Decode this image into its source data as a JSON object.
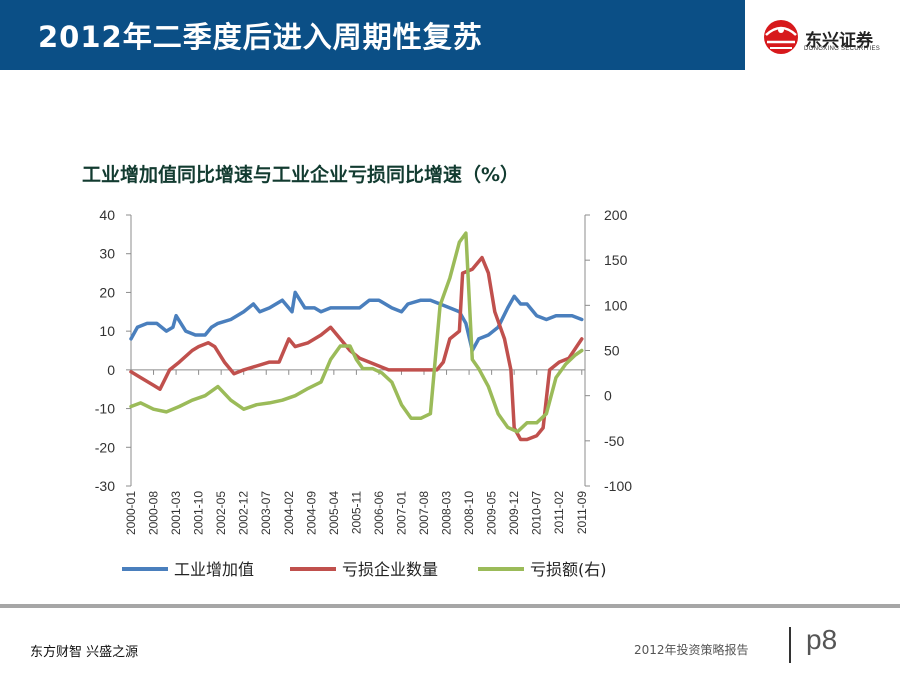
{
  "header": {
    "title": "2012年二季度后进入周期性复苏"
  },
  "logo": {
    "name": "东兴证券",
    "subtitle": "DONGXING SECURITIES"
  },
  "footer": {
    "left_text": "东方财智 兴盛之源",
    "right_text": "2012年投资策略报告",
    "page": "p8"
  },
  "colors": {
    "header_bg": "#0b4f86",
    "blue": "#4a7fbd",
    "red": "#c0504d",
    "green": "#9bbb59",
    "logo_red": "#d7191c"
  },
  "chart_data": {
    "type": "line",
    "title": "工业增加值同比增速与工业企业亏损同比增速（%）",
    "x_start": "2000-01",
    "x_end": "2011-10",
    "x_tick_labels": [
      "2000-01",
      "2000-08",
      "2001-03",
      "2001-10",
      "2002-05",
      "2002-12",
      "2003-07",
      "2004-02",
      "2004-09",
      "2005-04",
      "2005-11",
      "2006-06",
      "2007-01",
      "2007-08",
      "2008-03",
      "2008-10",
      "2009-05",
      "2009-12",
      "2010-07",
      "2011-02",
      "2011-09"
    ],
    "y_left": {
      "min": -30,
      "max": 40,
      "ticks": [
        -30,
        -20,
        -10,
        0,
        10,
        20,
        30,
        40
      ]
    },
    "y_right": {
      "min": -100,
      "max": 200,
      "ticks": [
        -100,
        -50,
        0,
        50,
        100,
        150,
        200
      ]
    },
    "grid": false,
    "legend_position": "bottom",
    "series": [
      {
        "name": "工业增加值",
        "axis": "left",
        "color": "#4a7fbd",
        "points": [
          [
            "2000-01",
            8
          ],
          [
            "2000-03",
            11
          ],
          [
            "2000-06",
            12
          ],
          [
            "2000-09",
            12
          ],
          [
            "2000-12",
            10
          ],
          [
            "2001-02",
            11
          ],
          [
            "2001-03",
            14
          ],
          [
            "2001-06",
            10
          ],
          [
            "2001-09",
            9
          ],
          [
            "2001-12",
            9
          ],
          [
            "2002-02",
            11
          ],
          [
            "2002-04",
            12
          ],
          [
            "2002-08",
            13
          ],
          [
            "2002-12",
            15
          ],
          [
            "2003-03",
            17
          ],
          [
            "2003-05",
            15
          ],
          [
            "2003-08",
            16
          ],
          [
            "2003-12",
            18
          ],
          [
            "2004-03",
            15
          ],
          [
            "2004-04",
            20
          ],
          [
            "2004-07",
            16
          ],
          [
            "2004-10",
            16
          ],
          [
            "2004-12",
            15
          ],
          [
            "2005-03",
            16
          ],
          [
            "2005-06",
            16
          ],
          [
            "2005-10",
            16
          ],
          [
            "2005-12",
            16
          ],
          [
            "2006-03",
            18
          ],
          [
            "2006-06",
            18
          ],
          [
            "2006-10",
            16
          ],
          [
            "2007-01",
            15
          ],
          [
            "2007-03",
            17
          ],
          [
            "2007-07",
            18
          ],
          [
            "2007-10",
            18
          ],
          [
            "2008-01",
            17
          ],
          [
            "2008-04",
            16
          ],
          [
            "2008-07",
            15
          ],
          [
            "2008-09",
            12
          ],
          [
            "2008-11",
            5
          ],
          [
            "2009-01",
            8
          ],
          [
            "2009-04",
            9
          ],
          [
            "2009-07",
            11
          ],
          [
            "2009-10",
            16
          ],
          [
            "2009-12",
            19
          ],
          [
            "2010-02",
            17
          ],
          [
            "2010-04",
            17
          ],
          [
            "2010-07",
            14
          ],
          [
            "2010-10",
            13
          ],
          [
            "2011-01",
            14
          ],
          [
            "2011-04",
            14
          ],
          [
            "2011-06",
            14
          ],
          [
            "2011-09",
            13
          ]
        ]
      },
      {
        "name": "亏损企业数量",
        "axis": "left",
        "color": "#c0504d",
        "points": [
          [
            "2000-01",
            -0.5
          ],
          [
            "2000-04",
            -2
          ],
          [
            "2000-08",
            -4
          ],
          [
            "2000-10",
            -5
          ],
          [
            "2001-01",
            0
          ],
          [
            "2001-04",
            2
          ],
          [
            "2001-08",
            5
          ],
          [
            "2001-10",
            6
          ],
          [
            "2002-01",
            7
          ],
          [
            "2002-03",
            6
          ],
          [
            "2002-06",
            2
          ],
          [
            "2002-09",
            -1
          ],
          [
            "2002-12",
            0
          ],
          [
            "2003-04",
            1
          ],
          [
            "2003-08",
            2
          ],
          [
            "2003-11",
            2
          ],
          [
            "2004-02",
            8
          ],
          [
            "2004-04",
            6
          ],
          [
            "2004-08",
            7
          ],
          [
            "2004-12",
            9
          ],
          [
            "2005-03",
            11
          ],
          [
            "2005-06",
            8
          ],
          [
            "2005-09",
            5
          ],
          [
            "2005-12",
            3
          ],
          [
            "2006-03",
            2
          ],
          [
            "2006-06",
            1
          ],
          [
            "2006-09",
            0
          ],
          [
            "2006-12",
            0
          ],
          [
            "2007-03",
            0
          ],
          [
            "2007-06",
            0
          ],
          [
            "2007-09",
            0
          ],
          [
            "2007-12",
            0
          ],
          [
            "2008-02",
            2
          ],
          [
            "2008-04",
            8
          ],
          [
            "2008-07",
            10
          ],
          [
            "2008-08",
            25
          ],
          [
            "2008-11",
            26
          ],
          [
            "2009-02",
            29
          ],
          [
            "2009-04",
            25
          ],
          [
            "2009-06",
            15
          ],
          [
            "2009-09",
            8
          ],
          [
            "2009-11",
            0
          ],
          [
            "2009-12",
            -15
          ],
          [
            "2010-02",
            -18
          ],
          [
            "2010-04",
            -18
          ],
          [
            "2010-07",
            -17
          ],
          [
            "2010-09",
            -15
          ],
          [
            "2010-11",
            0
          ],
          [
            "2011-02",
            2
          ],
          [
            "2011-05",
            3
          ],
          [
            "2011-09",
            8
          ]
        ]
      },
      {
        "name": "亏损额(右)",
        "axis": "right",
        "color": "#9bbb59",
        "points": [
          [
            "2000-01",
            -12
          ],
          [
            "2000-04",
            -8
          ],
          [
            "2000-08",
            -15
          ],
          [
            "2000-12",
            -18
          ],
          [
            "2001-04",
            -12
          ],
          [
            "2001-08",
            -5
          ],
          [
            "2001-12",
            0
          ],
          [
            "2002-04",
            10
          ],
          [
            "2002-08",
            -5
          ],
          [
            "2002-12",
            -15
          ],
          [
            "2003-04",
            -10
          ],
          [
            "2003-08",
            -8
          ],
          [
            "2003-12",
            -5
          ],
          [
            "2004-04",
            0
          ],
          [
            "2004-08",
            8
          ],
          [
            "2004-12",
            15
          ],
          [
            "2005-03",
            40
          ],
          [
            "2005-06",
            55
          ],
          [
            "2005-09",
            55
          ],
          [
            "2005-11",
            40
          ],
          [
            "2006-01",
            30
          ],
          [
            "2006-04",
            30
          ],
          [
            "2006-07",
            25
          ],
          [
            "2006-10",
            15
          ],
          [
            "2007-01",
            -10
          ],
          [
            "2007-04",
            -25
          ],
          [
            "2007-07",
            -25
          ],
          [
            "2007-10",
            -20
          ],
          [
            "2008-01",
            100
          ],
          [
            "2008-04",
            130
          ],
          [
            "2008-07",
            170
          ],
          [
            "2008-09",
            180
          ],
          [
            "2008-11",
            40
          ],
          [
            "2009-01",
            30
          ],
          [
            "2009-04",
            10
          ],
          [
            "2009-07",
            -20
          ],
          [
            "2009-10",
            -35
          ],
          [
            "2010-01",
            -40
          ],
          [
            "2010-04",
            -30
          ],
          [
            "2010-07",
            -30
          ],
          [
            "2010-10",
            -20
          ],
          [
            "2011-01",
            20
          ],
          [
            "2011-04",
            35
          ],
          [
            "2011-07",
            45
          ],
          [
            "2011-09",
            50
          ]
        ]
      }
    ]
  }
}
